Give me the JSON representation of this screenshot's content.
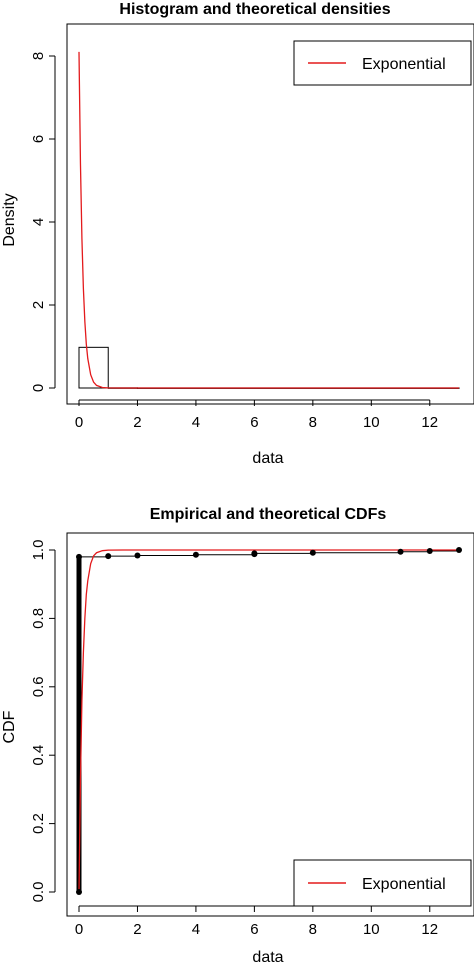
{
  "chart_data": [
    {
      "type": "histogram+line",
      "title": "Histogram and theoretical densities",
      "xlabel": "data",
      "ylabel": "Density",
      "xlim": [
        0,
        13
      ],
      "ylim": [
        0,
        8
      ],
      "xticks": [
        0,
        2,
        4,
        6,
        8,
        10,
        12
      ],
      "yticks": [
        0,
        2,
        4,
        6,
        8
      ],
      "grid": false,
      "legend": {
        "position": "top-right",
        "entries": [
          "Exponential"
        ]
      },
      "histogram": {
        "bins": [
          {
            "from": 0,
            "to": 1,
            "density": 0.98
          },
          {
            "from": 1,
            "to": 2,
            "density": 0.004
          },
          {
            "from": 2,
            "to": 13,
            "density": 0.002
          }
        ]
      },
      "series": [
        {
          "name": "Exponential",
          "color": "#e31a1c",
          "rate": 8.1,
          "x": [
            0,
            0.05,
            0.1,
            0.15,
            0.2,
            0.25,
            0.3,
            0.4,
            0.5,
            0.6,
            0.8,
            1,
            1.5,
            2,
            3,
            5,
            8,
            13
          ],
          "y": [
            8.1,
            5.4,
            3.6,
            2.4,
            1.6,
            1.06,
            0.71,
            0.32,
            0.14,
            0.063,
            0.012,
            0.0025,
            4e-05,
            0,
            0,
            0,
            0,
            0
          ]
        }
      ]
    },
    {
      "type": "step+line",
      "title": "Empirical and theoretical CDFs",
      "xlabel": "data",
      "ylabel": "CDF",
      "xlim": [
        0,
        13
      ],
      "ylim": [
        0,
        1
      ],
      "xticks": [
        0,
        2,
        4,
        6,
        8,
        10,
        12
      ],
      "yticks": [
        "0.0",
        "0.2",
        "0.4",
        "0.6",
        "0.8",
        "1.0"
      ],
      "grid": false,
      "legend": {
        "position": "bottom-right",
        "entries": [
          "Exponential"
        ]
      },
      "empirical": {
        "x": [
          0,
          1,
          2,
          4,
          6,
          6,
          8,
          11,
          12,
          13
        ],
        "y": [
          0.98,
          0.982,
          0.984,
          0.986,
          0.988,
          0.99,
          0.992,
          0.995,
          0.997,
          1.0
        ]
      },
      "series": [
        {
          "name": "Exponential",
          "color": "#e31a1c",
          "x": [
            0,
            0.05,
            0.1,
            0.15,
            0.2,
            0.25,
            0.3,
            0.4,
            0.5,
            0.6,
            0.8,
            1,
            1.5,
            2,
            13
          ],
          "y": [
            0,
            0.33,
            0.56,
            0.7,
            0.8,
            0.87,
            0.91,
            0.96,
            0.983,
            0.992,
            0.998,
            0.9997,
            1.0,
            1.0,
            1.0
          ]
        }
      ]
    }
  ]
}
